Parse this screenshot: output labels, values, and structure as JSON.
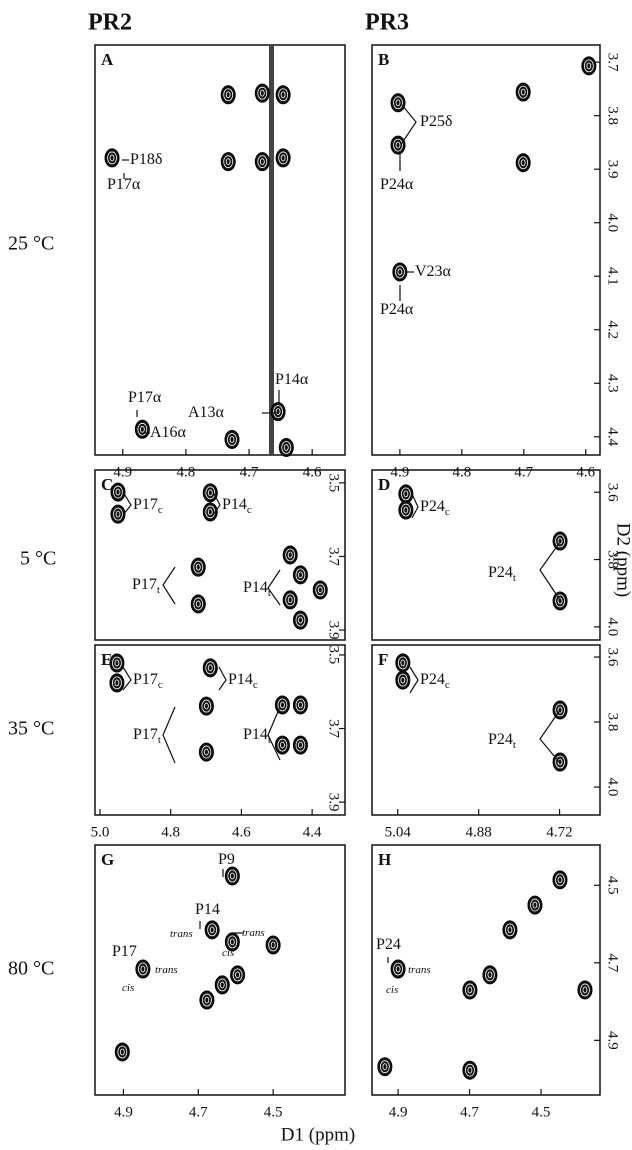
{
  "columns": [
    "PR2",
    "PR3"
  ],
  "rows": [
    "25 °C",
    "5 °C",
    "35 °C",
    "80 °C"
  ],
  "x_axis_label": "D1 (ppm)",
  "y_axis_label": "D2 (ppm)",
  "panels": [
    {
      "letter": "A",
      "xlim": [
        4.944,
        4.548
      ],
      "ylim": [
        3.668,
        4.434
      ],
      "xticks": [
        4.9,
        4.8,
        4.7,
        4.6
      ],
      "yticks": [],
      "peaks": [
        {
          "x": 4.733,
          "y": 3.761
        },
        {
          "x": 4.679,
          "y": 3.758
        },
        {
          "x": 4.646,
          "y": 3.761
        },
        {
          "x": 4.733,
          "y": 3.886
        },
        {
          "x": 4.679,
          "y": 3.886
        },
        {
          "x": 4.646,
          "y": 3.879
        },
        {
          "x": 4.917,
          "y": 3.879
        },
        {
          "x": 4.869,
          "y": 4.386
        },
        {
          "x": 4.727,
          "y": 4.405
        },
        {
          "x": 4.654,
          "y": 4.353
        },
        {
          "x": 4.641,
          "y": 4.42
        }
      ],
      "labels": [
        {
          "text": "P18δ"
        },
        {
          "text": "P17α"
        },
        {
          "text": "P17α"
        },
        {
          "text": "A16α"
        },
        {
          "text": "A13α"
        },
        {
          "text": "P14α"
        }
      ]
    },
    {
      "letter": "B",
      "xlim": [
        4.945,
        4.577
      ],
      "ylim": [
        3.668,
        4.434
      ],
      "xticks": [
        4.9,
        4.8,
        4.7,
        4.6
      ],
      "yticks": [
        3.7,
        3.8,
        3.9,
        {
          "value": 4,
          "label": "4.0"
        },
        4.1,
        4.2,
        4.3,
        4.4
      ],
      "peaks": [
        {
          "x": 4.903,
          "y": 3.776
        },
        {
          "x": 4.903,
          "y": 3.855
        },
        {
          "x": 4.701,
          "y": 3.756
        },
        {
          "x": 4.701,
          "y": 3.888
        },
        {
          "x": 4.9,
          "y": 4.092
        },
        {
          "x": 4.595,
          "y": 3.707
        }
      ],
      "labels": [
        {
          "text": "P25δ"
        },
        {
          "text": "P24α"
        },
        {
          "text": "V23α"
        },
        {
          "text": "P24α"
        }
      ]
    },
    {
      "letter": "C",
      "xlim": [
        5.014,
        4.307
      ],
      "ylim": [
        3.465,
        3.927
      ],
      "xticks": [],
      "yticks": [
        3.5,
        3.7,
        3.9
      ],
      "peaks": [
        {
          "x": 4.949,
          "y": 3.525
        },
        {
          "x": 4.949,
          "y": 3.585
        },
        {
          "x": 4.688,
          "y": 3.527
        },
        {
          "x": 4.688,
          "y": 3.579
        },
        {
          "x": 4.722,
          "y": 3.729
        },
        {
          "x": 4.722,
          "y": 3.829
        },
        {
          "x": 4.462,
          "y": 3.696
        },
        {
          "x": 4.433,
          "y": 3.75
        },
        {
          "x": 4.462,
          "y": 3.818
        },
        {
          "x": 4.433,
          "y": 3.873
        },
        {
          "x": 4.377,
          "y": 3.791
        }
      ],
      "labels": [
        {
          "text": "P17",
          "sub": "c"
        },
        {
          "text": "P14",
          "sub": "c"
        },
        {
          "text": "P17",
          "sub": "t"
        },
        {
          "text": "P14",
          "sub": "t"
        }
      ]
    },
    {
      "letter": "D",
      "xlim": [
        5.091,
        4.64
      ],
      "ylim": [
        3.534,
        4.039
      ],
      "xticks": [],
      "yticks": [
        3.6,
        3.8,
        {
          "value": 4,
          "label": "4.0"
        }
      ],
      "peaks": [
        {
          "x": 5.024,
          "y": 3.605
        },
        {
          "x": 5.024,
          "y": 3.653
        },
        {
          "x": 4.719,
          "y": 3.745
        },
        {
          "x": 4.719,
          "y": 3.923
        }
      ],
      "labels": [
        {
          "text": "P24",
          "sub": "c"
        },
        {
          "text": "P24",
          "sub": "t"
        }
      ]
    },
    {
      "letter": "E",
      "xlim": [
        5.014,
        4.307
      ],
      "ylim": [
        3.473,
        3.935
      ],
      "xticks": [
        {
          "value": 5,
          "label": "5.0"
        },
        4.8,
        4.6,
        4.4
      ],
      "yticks": [
        3.5,
        3.7,
        3.9
      ],
      "peaks": [
        {
          "x": 4.952,
          "y": 3.522
        },
        {
          "x": 4.952,
          "y": 3.576
        },
        {
          "x": 4.688,
          "y": 3.535
        },
        {
          "x": 4.699,
          "y": 3.639
        },
        {
          "x": 4.699,
          "y": 3.764
        },
        {
          "x": 4.484,
          "y": 3.636
        },
        {
          "x": 4.484,
          "y": 3.745
        },
        {
          "x": 4.433,
          "y": 3.636
        },
        {
          "x": 4.433,
          "y": 3.745
        }
      ],
      "labels": [
        {
          "text": "P17",
          "sub": "c"
        },
        {
          "text": "P14",
          "sub": "c"
        },
        {
          "text": "P17",
          "sub": "t"
        },
        {
          "text": "P14",
          "sub": "t"
        }
      ]
    },
    {
      "letter": "F",
      "xlim": [
        5.091,
        4.64
      ],
      "ylim": [
        3.563,
        4.086
      ],
      "xticks": [
        5.04,
        4.88,
        4.72
      ],
      "yticks": [
        3.6,
        3.8,
        {
          "value": 4,
          "label": "4.0"
        }
      ],
      "peaks": [
        {
          "x": 5.03,
          "y": 3.618
        },
        {
          "x": 5.03,
          "y": 3.671
        },
        {
          "x": 4.719,
          "y": 3.763
        },
        {
          "x": 4.719,
          "y": 3.923
        }
      ],
      "labels": [
        {
          "text": "P24",
          "sub": "c"
        },
        {
          "text": "P24",
          "sub": "t"
        }
      ]
    },
    {
      "letter": "G",
      "xlim": [
        4.976,
        4.308
      ],
      "ylim": [
        4.396,
        5.041
      ],
      "xticks": [
        4.9,
        4.7,
        4.5
      ],
      "yticks": [],
      "peaks": [
        {
          "x": 4.903,
          "y": 4.93
        },
        {
          "x": 4.848,
          "y": 4.716
        },
        {
          "x": 4.663,
          "y": 4.615
        },
        {
          "x": 4.609,
          "y": 4.476
        },
        {
          "x": 4.609,
          "y": 4.646
        },
        {
          "x": 4.677,
          "y": 4.796
        },
        {
          "x": 4.636,
          "y": 4.757
        },
        {
          "x": 4.595,
          "y": 4.731
        },
        {
          "x": 4.5,
          "y": 4.654
        }
      ],
      "labels": [
        {
          "text": "P9"
        },
        {
          "text": "P14"
        },
        {
          "text": "trans",
          "italic": true
        },
        {
          "text": "cis",
          "italic": true
        },
        {
          "text": "trans",
          "italic": true
        },
        {
          "text": "P17"
        },
        {
          "text": "trans",
          "italic": true
        },
        {
          "text": "cis",
          "italic": true
        }
      ]
    },
    {
      "letter": "H",
      "xlim": [
        4.973,
        4.335
      ],
      "ylim": [
        4.396,
        5.041
      ],
      "xticks": [
        4.9,
        4.7,
        4.5
      ],
      "yticks": [
        4.5,
        4.7,
        4.9
      ],
      "peaks": [
        {
          "x": 4.937,
          "y": 4.968
        },
        {
          "x": 4.9,
          "y": 4.716
        },
        {
          "x": 4.699,
          "y": 4.77
        },
        {
          "x": 4.643,
          "y": 4.731
        },
        {
          "x": 4.699,
          "y": 4.977
        },
        {
          "x": 4.587,
          "y": 4.615
        },
        {
          "x": 4.517,
          "y": 4.551
        },
        {
          "x": 4.447,
          "y": 4.486
        },
        {
          "x": 4.377,
          "y": 4.77
        }
      ],
      "labels": [
        {
          "text": "P24"
        },
        {
          "text": "trans",
          "italic": true
        },
        {
          "text": "cis",
          "italic": true
        }
      ]
    }
  ]
}
